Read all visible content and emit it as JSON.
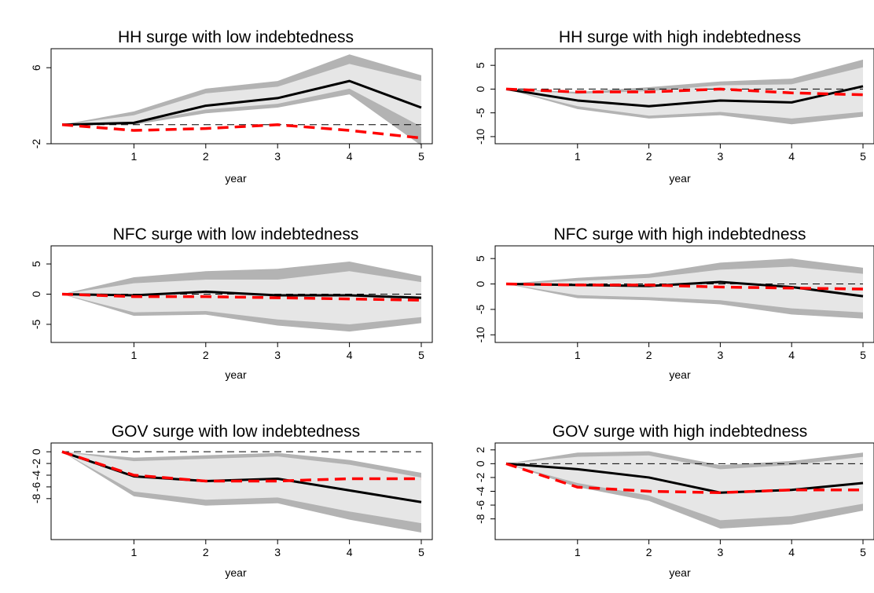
{
  "chart_data": [
    {
      "type": "line",
      "title": "HH surge with low indebtedness",
      "xlabel": "year",
      "ylabel": "",
      "x": [
        0,
        1,
        2,
        3,
        4,
        5
      ],
      "x_ticks": [
        "1",
        "2",
        "3",
        "4",
        "5"
      ],
      "y_ticks": [
        "-2",
        "",
        "",
        "6"
      ],
      "ylim": [
        -2,
        8
      ],
      "series": [
        {
          "role": "band_outer",
          "lower": [
            0,
            0.0,
            1.2,
            1.8,
            3.2,
            -2.2
          ],
          "upper": [
            0,
            1.4,
            3.8,
            4.6,
            7.4,
            5.2
          ]
        },
        {
          "role": "band_inner",
          "lower": [
            0,
            0.2,
            1.6,
            2.2,
            3.8,
            -0.2
          ],
          "upper": [
            0,
            1.0,
            3.3,
            4.0,
            6.4,
            4.6
          ]
        },
        {
          "role": "point_estimate",
          "color": "#000000",
          "values": [
            0,
            0.2,
            2.0,
            2.8,
            4.6,
            1.8
          ]
        },
        {
          "role": "comparison",
          "color": "#ff0000",
          "values": [
            0,
            -0.6,
            -0.4,
            0.0,
            -0.6,
            -1.4
          ]
        },
        {
          "role": "zero",
          "color": "#000000",
          "values": [
            0,
            0,
            0,
            0,
            0,
            0
          ]
        }
      ]
    },
    {
      "type": "line",
      "title": "HH surge with high indebtedness",
      "xlabel": "year",
      "ylabel": "",
      "x": [
        0,
        1,
        2,
        3,
        4,
        5
      ],
      "x_ticks": [
        "1",
        "2",
        "3",
        "4",
        "5"
      ],
      "y_ticks": [
        "-10",
        "-5",
        "0",
        "5"
      ],
      "ylim": [
        -11.5,
        8.5
      ],
      "series": [
        {
          "role": "band_outer",
          "lower": [
            0,
            -4.2,
            -6.2,
            -5.5,
            -7.4,
            -5.8
          ],
          "upper": [
            0,
            -0.6,
            0.4,
            1.6,
            2.2,
            6.2
          ]
        },
        {
          "role": "band_inner",
          "lower": [
            0,
            -3.6,
            -5.6,
            -4.8,
            -6.2,
            -4.8
          ],
          "upper": [
            0,
            -1.0,
            -0.4,
            0.8,
            1.0,
            4.6
          ]
        },
        {
          "role": "point_estimate",
          "color": "#000000",
          "values": [
            0,
            -2.4,
            -3.6,
            -2.4,
            -2.8,
            0.6
          ]
        },
        {
          "role": "comparison",
          "color": "#ff0000",
          "values": [
            0,
            -0.6,
            -0.6,
            0.0,
            -0.8,
            -1.2
          ]
        },
        {
          "role": "zero",
          "color": "#000000",
          "values": [
            0,
            0,
            0,
            0,
            0,
            0
          ]
        }
      ]
    },
    {
      "type": "line",
      "title": "NFC surge with low indebtedness",
      "xlabel": "year",
      "ylabel": "",
      "x": [
        0,
        1,
        2,
        3,
        4,
        5
      ],
      "x_ticks": [
        "1",
        "2",
        "3",
        "4",
        "5"
      ],
      "y_ticks": [
        "-5",
        "0",
        "5"
      ],
      "ylim": [
        -8,
        8
      ],
      "series": [
        {
          "role": "band_outer",
          "lower": [
            0,
            -3.6,
            -3.4,
            -5.2,
            -6.2,
            -4.8
          ],
          "upper": [
            0,
            2.8,
            3.8,
            4.2,
            5.4,
            3.0
          ]
        },
        {
          "role": "band_inner",
          "lower": [
            0,
            -3.0,
            -2.8,
            -4.2,
            -5.0,
            -3.8
          ],
          "upper": [
            0,
            1.8,
            2.4,
            2.4,
            3.8,
            2.0
          ]
        },
        {
          "role": "point_estimate",
          "color": "#000000",
          "values": [
            0,
            -0.2,
            0.4,
            -0.2,
            -0.2,
            -0.6
          ]
        },
        {
          "role": "comparison",
          "color": "#ff0000",
          "values": [
            0,
            -0.4,
            -0.4,
            -0.6,
            -0.8,
            -1.0
          ]
        },
        {
          "role": "zero",
          "color": "#000000",
          "values": [
            0,
            0,
            0,
            0,
            0,
            0
          ]
        }
      ]
    },
    {
      "type": "line",
      "title": "NFC surge with high indebtedness",
      "xlabel": "year",
      "ylabel": "",
      "x": [
        0,
        1,
        2,
        3,
        4,
        5
      ],
      "x_ticks": [
        "1",
        "2",
        "3",
        "4",
        "5"
      ],
      "y_ticks": [
        "-10",
        "-5",
        "0",
        "5"
      ],
      "ylim": [
        -11.5,
        7.5
      ],
      "series": [
        {
          "role": "band_outer",
          "lower": [
            0,
            -2.8,
            -3.2,
            -4.0,
            -6.0,
            -6.8
          ],
          "upper": [
            0,
            1.2,
            2.0,
            4.2,
            5.0,
            3.2
          ]
        },
        {
          "role": "band_inner",
          "lower": [
            0,
            -2.2,
            -2.6,
            -3.2,
            -4.8,
            -5.6
          ],
          "upper": [
            0,
            0.6,
            1.2,
            2.8,
            3.4,
            2.0
          ]
        },
        {
          "role": "point_estimate",
          "color": "#000000",
          "values": [
            0,
            -0.2,
            -0.4,
            0.4,
            -0.6,
            -2.4
          ]
        },
        {
          "role": "comparison",
          "color": "#ff0000",
          "values": [
            0,
            -0.2,
            -0.2,
            -0.6,
            -0.8,
            -1.0
          ]
        },
        {
          "role": "zero",
          "color": "#000000",
          "values": [
            0,
            0,
            0,
            0,
            0,
            0
          ]
        }
      ]
    },
    {
      "type": "line",
      "title": "GOV surge with low indebtedness",
      "xlabel": "year",
      "ylabel": "",
      "x": [
        0,
        1,
        2,
        3,
        4,
        5
      ],
      "x_ticks": [
        "1",
        "2",
        "3",
        "4",
        "5"
      ],
      "y_ticks": [
        "-8",
        "-6",
        "-4",
        "-2",
        "0"
      ],
      "ylim": [
        -15,
        1.5
      ],
      "series": [
        {
          "role": "band_outer",
          "lower": [
            0,
            -7.6,
            -9.2,
            -8.8,
            -11.6,
            -13.8
          ],
          "upper": [
            0,
            -1.0,
            -0.6,
            -0.2,
            -1.4,
            -3.6
          ]
        },
        {
          "role": "band_inner",
          "lower": [
            0,
            -6.8,
            -8.2,
            -7.8,
            -10.2,
            -12.2
          ],
          "upper": [
            0,
            -1.6,
            -1.2,
            -0.8,
            -2.2,
            -4.4
          ]
        },
        {
          "role": "point_estimate",
          "color": "#000000",
          "values": [
            0,
            -4.2,
            -5.0,
            -4.6,
            -6.6,
            -8.6
          ]
        },
        {
          "role": "comparison",
          "color": "#ff0000",
          "values": [
            0,
            -4.0,
            -5.0,
            -5.0,
            -4.6,
            -4.6
          ]
        },
        {
          "role": "zero",
          "color": "#000000",
          "values": [
            0,
            0,
            0,
            0,
            0,
            0
          ]
        }
      ]
    },
    {
      "type": "line",
      "title": "GOV surge with high indebtedness",
      "xlabel": "year",
      "ylabel": "",
      "x": [
        0,
        1,
        2,
        3,
        4,
        5
      ],
      "x_ticks": [
        "1",
        "2",
        "3",
        "4",
        "5"
      ],
      "y_ticks": [
        "-8",
        "-6",
        "-4",
        "-2",
        "0",
        "2"
      ],
      "ylim": [
        -11,
        3
      ],
      "series": [
        {
          "role": "band_outer",
          "lower": [
            0,
            -3.4,
            -5.4,
            -9.4,
            -8.8,
            -6.8
          ],
          "upper": [
            0,
            1.6,
            1.8,
            -0.2,
            0.4,
            1.6
          ]
        },
        {
          "role": "band_inner",
          "lower": [
            0,
            -2.8,
            -4.6,
            -8.2,
            -7.6,
            -5.8
          ],
          "upper": [
            0,
            1.0,
            1.2,
            -0.8,
            -0.2,
            1.0
          ]
        },
        {
          "role": "point_estimate",
          "color": "#000000",
          "values": [
            0,
            -0.8,
            -2.0,
            -4.2,
            -3.8,
            -2.8
          ]
        },
        {
          "role": "comparison",
          "color": "#ff0000",
          "values": [
            0,
            -3.4,
            -4.0,
            -4.2,
            -3.8,
            -3.8
          ]
        },
        {
          "role": "zero",
          "color": "#000000",
          "values": [
            0,
            0,
            0,
            0,
            0,
            0
          ]
        }
      ]
    }
  ],
  "colors": {
    "band_outer": "#b3b3b3",
    "band_inner": "#e6e6e6",
    "point_estimate": "#000000",
    "comparison": "#ff0000"
  }
}
